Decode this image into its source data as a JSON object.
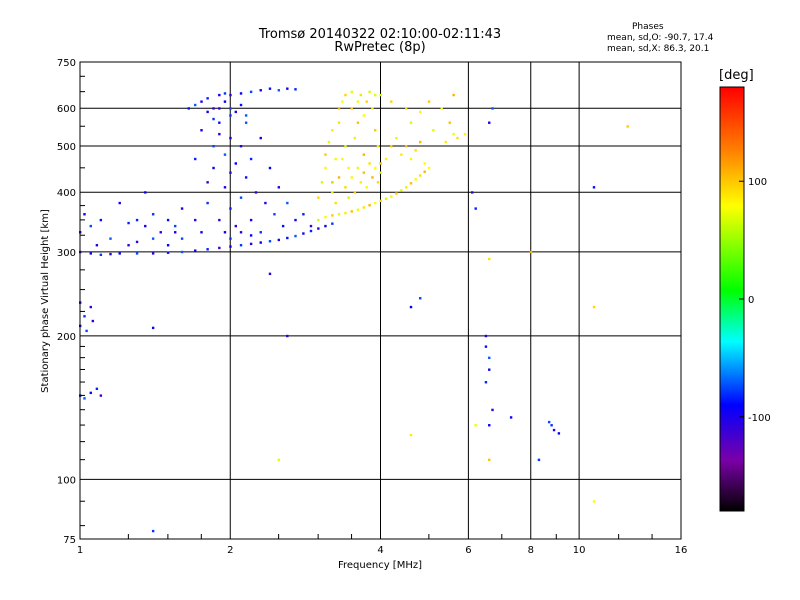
{
  "title_line1": "Tromsø 20140322 02:10:00-02:11:43",
  "title_line2": "RwPretec (8p)",
  "phase_box": {
    "title": "Phases",
    "line1": "mean, sd,O: -90.7, 17.4",
    "line2": "mean, sd,X:  86.3, 20.1"
  },
  "colorbar": {
    "label": "[deg]",
    "ticks": [
      100,
      0,
      -100
    ],
    "range": [
      -180,
      180
    ],
    "colorscale": "rainbow: black(-180) → purple → blue → cyan → green → yellow → red(+180)"
  },
  "chart_data": {
    "type": "scatter",
    "title": "Tromsø 20140322 02:10:00-02:11:43",
    "subtitle": "RwPretec (8p)",
    "xlabel": "Frequency [MHz]",
    "ylabel": "Stationary phase Virtual Height [km]",
    "xscale": "log",
    "yscale": "log",
    "xlim": [
      1,
      16
    ],
    "ylim": [
      75,
      750
    ],
    "xticks": [
      1,
      2,
      4,
      6,
      8,
      10,
      16
    ],
    "yticks": [
      75,
      100,
      200,
      300,
      400,
      500,
      600,
      750
    ],
    "grid": true,
    "color_encoding": "phase [deg]",
    "series": [
      {
        "name": "O",
        "mean_phase": -90.7,
        "description_points": "ordinary-mode echo trace",
        "points": [
          [
            1.0,
            300
          ],
          [
            1.05,
            298
          ],
          [
            1.1,
            296
          ],
          [
            1.15,
            297
          ],
          [
            1.2,
            298
          ],
          [
            1.3,
            298
          ],
          [
            1.4,
            298
          ],
          [
            1.5,
            299
          ],
          [
            1.6,
            300
          ],
          [
            1.7,
            302
          ],
          [
            1.8,
            304
          ],
          [
            1.9,
            306
          ],
          [
            2.0,
            308
          ],
          [
            2.1,
            310
          ],
          [
            2.2,
            312
          ],
          [
            2.3,
            314
          ],
          [
            2.4,
            316
          ],
          [
            2.5,
            318
          ],
          [
            2.6,
            321
          ],
          [
            2.7,
            324
          ],
          [
            2.8,
            328
          ],
          [
            2.9,
            332
          ],
          [
            3.0,
            336
          ],
          [
            3.1,
            340
          ],
          [
            3.2,
            344
          ],
          [
            1.0,
            330
          ],
          [
            1.02,
            360
          ],
          [
            1.05,
            340
          ],
          [
            1.08,
            310
          ],
          [
            1.1,
            350
          ],
          [
            1.15,
            320
          ],
          [
            1.2,
            380
          ],
          [
            1.25,
            345
          ],
          [
            1.3,
            315
          ],
          [
            1.35,
            400
          ],
          [
            1.4,
            360
          ],
          [
            1.45,
            330
          ],
          [
            1.5,
            310
          ],
          [
            1.55,
            340
          ],
          [
            1.6,
            370
          ],
          [
            1.65,
            600
          ],
          [
            1.7,
            610
          ],
          [
            1.75,
            620
          ],
          [
            1.8,
            630
          ],
          [
            1.85,
            600
          ],
          [
            1.9,
            640
          ],
          [
            1.95,
            645
          ],
          [
            2.0,
            640
          ],
          [
            2.1,
            645
          ],
          [
            2.2,
            650
          ],
          [
            2.3,
            655
          ],
          [
            2.4,
            660
          ],
          [
            2.5,
            655
          ],
          [
            2.6,
            660
          ],
          [
            2.7,
            658
          ],
          [
            1.7,
            350
          ],
          [
            1.75,
            330
          ],
          [
            1.8,
            380
          ],
          [
            1.8,
            420
          ],
          [
            1.85,
            450
          ],
          [
            1.85,
            500
          ],
          [
            1.9,
            530
          ],
          [
            1.9,
            560
          ],
          [
            1.95,
            480
          ],
          [
            1.95,
            410
          ],
          [
            2.0,
            370
          ],
          [
            2.0,
            440
          ],
          [
            2.0,
            520
          ],
          [
            2.0,
            580
          ],
          [
            2.05,
            340
          ],
          [
            2.05,
            460
          ],
          [
            2.1,
            390
          ],
          [
            2.1,
            500
          ],
          [
            2.15,
            430
          ],
          [
            2.15,
            560
          ],
          [
            2.2,
            350
          ],
          [
            2.2,
            470
          ],
          [
            2.25,
            400
          ],
          [
            2.3,
            520
          ],
          [
            2.3,
            330
          ],
          [
            2.35,
            380
          ],
          [
            2.4,
            450
          ],
          [
            2.45,
            360
          ],
          [
            2.5,
            410
          ],
          [
            2.55,
            340
          ],
          [
            2.6,
            380
          ],
          [
            2.7,
            350
          ],
          [
            2.8,
            360
          ],
          [
            2.9,
            340
          ],
          [
            1.8,
            590
          ],
          [
            1.85,
            570
          ],
          [
            1.9,
            600
          ],
          [
            1.95,
            620
          ],
          [
            2.0,
            600
          ],
          [
            2.05,
            590
          ],
          [
            2.1,
            610
          ],
          [
            2.15,
            580
          ],
          [
            1.75,
            540
          ],
          [
            1.7,
            470
          ],
          [
            1.9,
            350
          ],
          [
            1.95,
            330
          ],
          [
            2.0,
            320
          ],
          [
            2.1,
            330
          ],
          [
            2.2,
            325
          ],
          [
            1.6,
            320
          ],
          [
            1.55,
            330
          ],
          [
            1.5,
            350
          ],
          [
            1.4,
            320
          ],
          [
            1.35,
            340
          ],
          [
            1.3,
            350
          ],
          [
            1.25,
            310
          ],
          [
            1.0,
            210
          ],
          [
            1.02,
            220
          ],
          [
            1.05,
            230
          ],
          [
            1.0,
            235
          ],
          [
            1.03,
            205
          ],
          [
            1.06,
            215
          ],
          [
            1.0,
            150
          ],
          [
            1.02,
            148
          ],
          [
            1.05,
            152
          ],
          [
            1.08,
            155
          ],
          [
            1.1,
            150
          ],
          [
            1.4,
            208
          ],
          [
            1.4,
            78
          ],
          [
            2.4,
            270
          ],
          [
            4.6,
            230
          ],
          [
            4.8,
            240
          ],
          [
            6.5,
            200
          ],
          [
            6.5,
            190
          ],
          [
            6.6,
            180
          ],
          [
            6.6,
            170
          ],
          [
            6.5,
            160
          ],
          [
            6.7,
            140
          ],
          [
            6.6,
            130
          ],
          [
            8.8,
            130
          ],
          [
            8.9,
            127
          ],
          [
            9.1,
            125
          ],
          [
            8.7,
            132
          ],
          [
            2.6,
            200
          ],
          [
            10.7,
            410
          ],
          [
            6.7,
            600
          ],
          [
            6.6,
            560
          ],
          [
            6.2,
            370
          ],
          [
            6.1,
            400
          ],
          [
            7.3,
            135
          ],
          [
            8.3,
            110
          ]
        ]
      },
      {
        "name": "X",
        "mean_phase": 86.3,
        "description_points": "extraordinary-mode echo trace",
        "points": [
          [
            3.0,
            350
          ],
          [
            3.1,
            355
          ],
          [
            3.2,
            358
          ],
          [
            3.3,
            360
          ],
          [
            3.4,
            362
          ],
          [
            3.5,
            365
          ],
          [
            3.6,
            368
          ],
          [
            3.7,
            372
          ],
          [
            3.8,
            376
          ],
          [
            3.9,
            380
          ],
          [
            4.0,
            384
          ],
          [
            4.1,
            388
          ],
          [
            4.2,
            392
          ],
          [
            4.3,
            398
          ],
          [
            4.4,
            404
          ],
          [
            4.5,
            410
          ],
          [
            4.6,
            418
          ],
          [
            4.7,
            426
          ],
          [
            4.8,
            434
          ],
          [
            4.9,
            442
          ],
          [
            5.0,
            450
          ],
          [
            3.0,
            390
          ],
          [
            3.05,
            420
          ],
          [
            3.1,
            450
          ],
          [
            3.1,
            480
          ],
          [
            3.15,
            510
          ],
          [
            3.2,
            540
          ],
          [
            3.2,
            420
          ],
          [
            3.25,
            470
          ],
          [
            3.3,
            560
          ],
          [
            3.3,
            600
          ],
          [
            3.35,
            620
          ],
          [
            3.4,
            640
          ],
          [
            3.4,
            500
          ],
          [
            3.45,
            450
          ],
          [
            3.5,
            600
          ],
          [
            3.5,
            650
          ],
          [
            3.55,
            520
          ],
          [
            3.6,
            560
          ],
          [
            3.6,
            620
          ],
          [
            3.65,
            640
          ],
          [
            3.7,
            480
          ],
          [
            3.7,
            580
          ],
          [
            3.75,
            620
          ],
          [
            3.8,
            650
          ],
          [
            3.85,
            600
          ],
          [
            3.9,
            540
          ],
          [
            3.9,
            640
          ],
          [
            3.95,
            500
          ],
          [
            4.0,
            460
          ],
          [
            3.2,
            400
          ],
          [
            3.25,
            380
          ],
          [
            3.3,
            430
          ],
          [
            3.35,
            470
          ],
          [
            3.4,
            410
          ],
          [
            3.45,
            390
          ],
          [
            3.5,
            430
          ],
          [
            3.55,
            400
          ],
          [
            3.6,
            450
          ],
          [
            3.65,
            420
          ],
          [
            3.7,
            440
          ],
          [
            3.75,
            410
          ],
          [
            3.8,
            460
          ],
          [
            3.85,
            430
          ],
          [
            3.9,
            450
          ],
          [
            3.95,
            420
          ],
          [
            4.0,
            440
          ],
          [
            4.1,
            470
          ],
          [
            4.2,
            500
          ],
          [
            4.3,
            520
          ],
          [
            4.4,
            480
          ],
          [
            4.5,
            500
          ],
          [
            4.6,
            470
          ],
          [
            4.7,
            490
          ],
          [
            4.8,
            510
          ],
          [
            4.9,
            460
          ],
          [
            4.5,
            600
          ],
          [
            4.6,
            560
          ],
          [
            4.8,
            590
          ],
          [
            5.0,
            620
          ],
          [
            5.1,
            540
          ],
          [
            5.4,
            510
          ],
          [
            5.5,
            560
          ],
          [
            5.6,
            530
          ],
          [
            5.7,
            520
          ],
          [
            5.6,
            640
          ],
          [
            5.3,
            600
          ],
          [
            4.2,
            620
          ],
          [
            4.0,
            640
          ],
          [
            5.9,
            530
          ],
          [
            12.5,
            550
          ],
          [
            2.5,
            110
          ],
          [
            4.6,
            124
          ],
          [
            6.6,
            110
          ],
          [
            6.2,
            130
          ],
          [
            6.6,
            290
          ],
          [
            8.0,
            300
          ],
          [
            10.7,
            90
          ],
          [
            10.7,
            230
          ]
        ]
      }
    ]
  }
}
